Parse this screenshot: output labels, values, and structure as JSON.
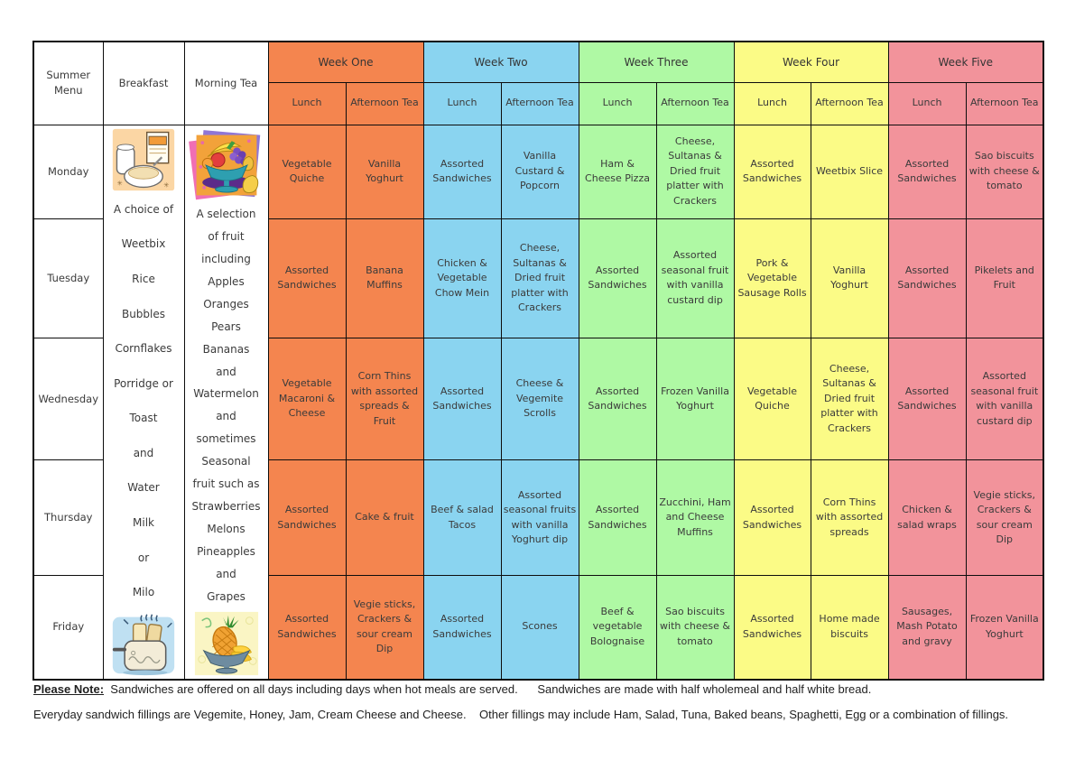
{
  "table": {
    "corner_label": "Summer Menu",
    "breakfast_label": "Breakfast",
    "morning_tea_label": "Morning Tea",
    "lunch_label": "Lunch",
    "afternoon_tea_label": "Afternoon Tea",
    "weeks": [
      {
        "label": "Week One",
        "color": "#F4854F"
      },
      {
        "label": "Week Two",
        "color": "#8AD4F0"
      },
      {
        "label": "Week Three",
        "color": "#AFF9A4"
      },
      {
        "label": "Week Four",
        "color": "#FBFB86"
      },
      {
        "label": "Week Five",
        "color": "#F2939B"
      }
    ],
    "breakfast_lines": [
      "A choice of",
      "Weetbix",
      "Rice",
      "Bubbles",
      "Cornflakes",
      "Porridge or",
      "Toast",
      "and",
      "Water",
      "Milk",
      "or",
      "Milo"
    ],
    "morning_tea_lines": [
      "A selection",
      "of fruit",
      "including",
      "Apples",
      "Oranges",
      "Pears",
      "Bananas",
      "and",
      "Watermelon",
      "and",
      "sometimes",
      "Seasonal",
      "fruit such as",
      "Strawberries",
      "Melons",
      "Pineapples",
      "and",
      "Grapes"
    ],
    "days": [
      {
        "day": "Monday",
        "meals": [
          "Vegetable Quiche",
          "Vanilla Yoghurt",
          "Assorted Sandwiches",
          "Vanilla Custard & Popcorn",
          "Ham & Cheese Pizza",
          "Cheese, Sultanas & Dried fruit platter with Crackers",
          "Assorted Sandwiches",
          "Weetbix Slice",
          "Assorted Sandwiches",
          "Sao biscuits with cheese & tomato"
        ]
      },
      {
        "day": "Tuesday",
        "meals": [
          "Assorted Sandwiches",
          "Banana Muffins",
          "Chicken & Vegetable Chow Mein",
          "Cheese, Sultanas & Dried fruit platter with Crackers",
          "Assorted Sandwiches",
          "Assorted seasonal fruit with vanilla custard dip",
          "Pork & Vegetable Sausage Rolls",
          "Vanilla Yoghurt",
          "Assorted Sandwiches",
          "Pikelets and Fruit"
        ]
      },
      {
        "day": "Wednesday",
        "meals": [
          "Vegetable Macaroni & Cheese",
          "Corn Thins with assorted spreads & Fruit",
          "Assorted Sandwiches",
          "Cheese & Vegemite Scrolls",
          "Assorted Sandwiches",
          "Frozen Vanilla Yoghurt",
          "Vegetable Quiche",
          "Cheese, Sultanas & Dried fruit platter with Crackers",
          "Assorted Sandwiches",
          "Assorted seasonal fruit with vanilla custard dip"
        ]
      },
      {
        "day": "Thursday",
        "meals": [
          "Assorted Sandwiches",
          "Cake & fruit",
          "Beef & salad Tacos",
          "Assorted seasonal fruits with vanilla Yoghurt dip",
          "Assorted Sandwiches",
          "Zucchini, Ham and Cheese Muffins",
          "Assorted Sandwiches",
          "Corn Thins with assorted spreads",
          "Chicken & salad wraps",
          "Vegie sticks, Crackers & sour cream Dip"
        ]
      },
      {
        "day": "Friday",
        "meals": [
          "Assorted Sandwiches",
          "Vegie sticks, Crackers & sour cream Dip",
          "Assorted Sandwiches",
          "Scones",
          "Beef & vegetable Bolognaise",
          "Sao biscuits with cheese & tomato",
          "Assorted Sandwiches",
          "Home made biscuits",
          "Sausages, Mash Potato and gravy",
          "Frozen Vanilla Yoghurt"
        ]
      }
    ]
  },
  "images": {
    "breakfast_top": "cereal-bowl-and-milk-clipart",
    "breakfast_bottom": "toaster-with-toast-clipart",
    "morning_tea_top": "fruit-bowl-clipart",
    "morning_tea_bottom": "pineapple-and-bananas-bowl-clipart"
  },
  "notes": {
    "label": "Please Note:",
    "line1": "  Sandwiches are offered on all days including days when hot meals are served.      Sandwiches are made with half wholemeal and half white bread.",
    "line2": "Everyday sandwich fillings are Vegemite, Honey, Jam, Cream Cheese and Cheese.    Other fillings may include Ham, Salad, Tuna, Baked beans, Spaghetti, Egg or a combination of fillings."
  }
}
